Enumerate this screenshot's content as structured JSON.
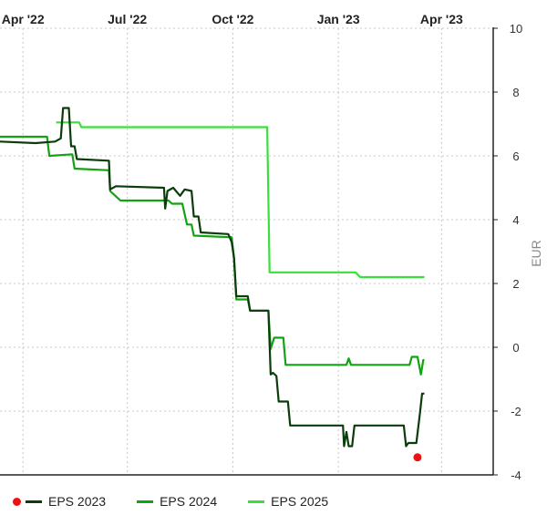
{
  "chart_data": {
    "type": "line",
    "title": "",
    "xlabel": "",
    "ylabel": "EUR",
    "x_domain": [
      "2022-03-12",
      "2023-05-16"
    ],
    "ylim": [
      -4,
      10
    ],
    "x_ticks": [
      {
        "label": "Apr '22",
        "date": "2022-04-01"
      },
      {
        "label": "Jul '22",
        "date": "2022-07-01"
      },
      {
        "label": "Oct '22",
        "date": "2022-10-01"
      },
      {
        "label": "Jan '23",
        "date": "2023-01-01"
      },
      {
        "label": "Apr '23",
        "date": "2023-04-01"
      }
    ],
    "y_ticks": [
      10,
      8,
      6,
      4,
      2,
      0,
      -2,
      -4
    ],
    "y_tick_labels": [
      "10",
      "8",
      "6",
      "4",
      "2",
      "0",
      "-2",
      "-4"
    ],
    "grid": true,
    "legend_position": "bottom",
    "series": [
      {
        "name": "EPS 2023",
        "color": "#0a3d0a",
        "marker_color": "#ee1111",
        "points": [
          [
            "2022-03-12",
            6.45
          ],
          [
            "2022-04-12",
            6.4
          ],
          [
            "2022-04-29",
            6.45
          ],
          [
            "2022-05-04",
            6.55
          ],
          [
            "2022-05-06",
            7.5
          ],
          [
            "2022-05-11",
            7.5
          ],
          [
            "2022-05-13",
            6.3
          ],
          [
            "2022-05-16",
            6.3
          ],
          [
            "2022-05-18",
            5.9
          ],
          [
            "2022-06-15",
            5.85
          ],
          [
            "2022-06-16",
            4.95
          ],
          [
            "2022-06-21",
            5.05
          ],
          [
            "2022-08-02",
            5.0
          ],
          [
            "2022-08-03",
            4.35
          ],
          [
            "2022-08-05",
            4.9
          ],
          [
            "2022-08-10",
            5.0
          ],
          [
            "2022-08-16",
            4.75
          ],
          [
            "2022-08-20",
            4.95
          ],
          [
            "2022-08-26",
            4.9
          ],
          [
            "2022-08-28",
            4.1
          ],
          [
            "2022-09-01",
            4.1
          ],
          [
            "2022-09-03",
            3.6
          ],
          [
            "2022-09-27",
            3.55
          ],
          [
            "2022-09-30",
            3.3
          ],
          [
            "2022-10-02",
            2.8
          ],
          [
            "2022-10-04",
            1.6
          ],
          [
            "2022-10-14",
            1.6
          ],
          [
            "2022-10-16",
            1.15
          ],
          [
            "2022-11-01",
            1.15
          ],
          [
            "2022-11-03",
            -0.85
          ],
          [
            "2022-11-05",
            -0.8
          ],
          [
            "2022-11-08",
            -0.9
          ],
          [
            "2022-11-10",
            -1.7
          ],
          [
            "2022-11-18",
            -1.7
          ],
          [
            "2022-11-20",
            -2.45
          ],
          [
            "2022-12-30",
            -2.45
          ],
          [
            "2023-01-05",
            -2.45
          ],
          [
            "2023-01-06",
            -3.1
          ],
          [
            "2023-01-08",
            -2.65
          ],
          [
            "2023-01-10",
            -3.1
          ],
          [
            "2023-01-13",
            -3.1
          ],
          [
            "2023-01-15",
            -2.45
          ],
          [
            "2023-02-27",
            -2.45
          ],
          [
            "2023-03-01",
            -3.1
          ],
          [
            "2023-03-03",
            -3.0
          ],
          [
            "2023-03-10",
            -3.0
          ],
          [
            "2023-03-13",
            -2.1
          ],
          [
            "2023-03-15",
            -1.45
          ],
          [
            "2023-03-17",
            -1.45
          ]
        ],
        "marker": [
          "2023-03-11",
          -3.45
        ]
      },
      {
        "name": "EPS 2024",
        "color": "#12a312",
        "points": [
          [
            "2022-03-12",
            6.6
          ],
          [
            "2022-04-22",
            6.6
          ],
          [
            "2022-04-24",
            6.0
          ],
          [
            "2022-05-14",
            6.05
          ],
          [
            "2022-05-16",
            5.6
          ],
          [
            "2022-06-15",
            5.55
          ],
          [
            "2022-06-16",
            4.9
          ],
          [
            "2022-06-25",
            4.6
          ],
          [
            "2022-08-06",
            4.6
          ],
          [
            "2022-08-09",
            4.5
          ],
          [
            "2022-08-18",
            4.5
          ],
          [
            "2022-08-22",
            3.85
          ],
          [
            "2022-08-26",
            3.85
          ],
          [
            "2022-08-28",
            3.5
          ],
          [
            "2022-09-30",
            3.45
          ],
          [
            "2022-10-02",
            2.8
          ],
          [
            "2022-10-04",
            1.5
          ],
          [
            "2022-10-14",
            1.5
          ],
          [
            "2022-10-16",
            1.15
          ],
          [
            "2022-11-01",
            1.15
          ],
          [
            "2022-11-03",
            -0.05
          ],
          [
            "2022-11-06",
            0.3
          ],
          [
            "2022-11-14",
            0.3
          ],
          [
            "2022-11-16",
            -0.55
          ],
          [
            "2023-01-08",
            -0.55
          ],
          [
            "2023-01-10",
            -0.35
          ],
          [
            "2023-01-12",
            -0.55
          ],
          [
            "2023-03-04",
            -0.55
          ],
          [
            "2023-03-06",
            -0.3
          ],
          [
            "2023-03-11",
            -0.3
          ],
          [
            "2023-03-14",
            -0.85
          ],
          [
            "2023-03-16",
            -0.4
          ],
          [
            "2023-03-17",
            -0.4
          ]
        ]
      },
      {
        "name": "EPS 2025",
        "color": "#39e039",
        "points": [
          [
            "2022-04-30",
            7.05
          ],
          [
            "2022-05-20",
            7.05
          ],
          [
            "2022-05-22",
            6.9
          ],
          [
            "2022-10-31",
            6.9
          ],
          [
            "2022-11-02",
            2.35
          ],
          [
            "2023-01-16",
            2.35
          ],
          [
            "2023-01-20",
            2.2
          ],
          [
            "2023-03-17",
            2.2
          ]
        ]
      }
    ]
  },
  "legend": {
    "items": [
      "EPS 2023",
      "EPS 2024",
      "EPS 2025"
    ],
    "colors": [
      "#0a3d0a",
      "#12a312",
      "#39e039"
    ],
    "dot_color": "#ee1111"
  }
}
